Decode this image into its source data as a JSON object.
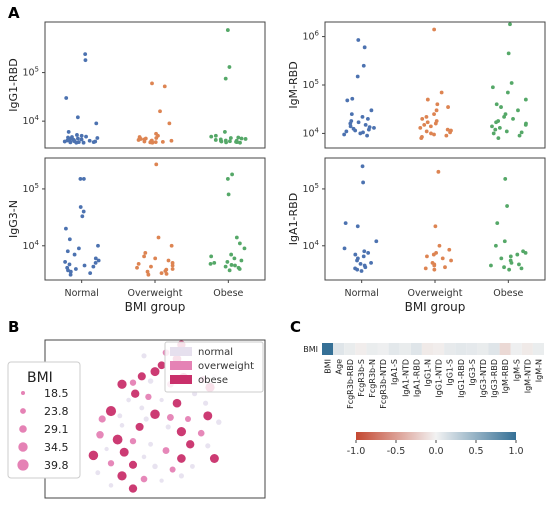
{
  "panel_labels": {
    "a": "A",
    "b": "B",
    "c": "C"
  },
  "colors": {
    "normal": "#4c72b0",
    "overweight": "#dd8452",
    "obese": "#55a868",
    "legend_normal": "#e6e0ee",
    "legend_overweight": "#e582b5",
    "legend_obese": "#c9306b"
  },
  "chart_data": [
    {
      "type": "scatter",
      "panel": "A",
      "subplot": "IgG1-RBD",
      "ylabel": "IgG1-RBD",
      "yscale": "log",
      "ylim": [
        2800,
        1100000
      ],
      "yticks": [
        {
          "v": 10000,
          "m": "10",
          "e": "4"
        },
        {
          "v": 100000,
          "m": "10",
          "e": "5"
        }
      ],
      "categories": [
        "Normal",
        "Overweight",
        "Obese"
      ],
      "show_xticks": false,
      "series": [
        {
          "category": "Normal",
          "values": [
            240000,
            180000,
            30000,
            12000,
            9000,
            6000,
            5200,
            5000,
            4800,
            4700,
            4600,
            4500,
            4400,
            4300,
            4200,
            4100,
            4000,
            3950,
            3900,
            3850,
            3800,
            3800,
            3750,
            3700,
            3700,
            3650,
            3600,
            3600
          ]
        },
        {
          "category": "Overweight",
          "values": [
            60000,
            52000,
            16000,
            9000,
            5500,
            5000,
            4700,
            4500,
            4400,
            4300,
            4200,
            4100,
            4000,
            3950,
            3900,
            3850,
            3800,
            3750,
            3700,
            3650,
            3600
          ]
        },
        {
          "category": "Obese",
          "values": [
            750000,
            130000,
            75000,
            6000,
            5000,
            4800,
            4600,
            4500,
            4400,
            4300,
            4200,
            4100,
            4000,
            3950,
            3900,
            3850,
            3800,
            3750,
            3700,
            3650,
            3600
          ]
        }
      ]
    },
    {
      "type": "scatter",
      "panel": "A",
      "subplot": "IgM-RBD",
      "ylabel": "IgM-RBD",
      "yscale": "log",
      "ylim": [
        5000,
        2000000
      ],
      "yticks": [
        {
          "v": 10000,
          "m": "10",
          "e": "4"
        },
        {
          "v": 100000,
          "m": "10",
          "e": "5"
        },
        {
          "v": 1000000,
          "m": "10",
          "e": "6"
        }
      ],
      "categories": [
        "Normal",
        "Overweight",
        "Obese"
      ],
      "show_xticks": false,
      "series": [
        {
          "category": "Normal",
          "values": [
            850000,
            600000,
            250000,
            150000,
            52000,
            48000,
            30000,
            25000,
            22000,
            20000,
            18000,
            17000,
            16000,
            15000,
            14000,
            13500,
            13000,
            12500,
            12000,
            11500,
            11000,
            10500,
            10000,
            9500,
            9000
          ]
        },
        {
          "category": "Overweight",
          "values": [
            1400000,
            70000,
            50000,
            40000,
            35000,
            30000,
            25000,
            22000,
            20000,
            18000,
            17000,
            16000,
            15000,
            14000,
            13000,
            12000,
            11500,
            11000,
            10500,
            10000,
            9500,
            9000,
            8500,
            8000
          ]
        },
        {
          "category": "Obese",
          "values": [
            1800000,
            450000,
            110000,
            90000,
            70000,
            50000,
            40000,
            35000,
            30000,
            25000,
            22000,
            20000,
            18000,
            17000,
            16000,
            15000,
            14000,
            13000,
            12000,
            11000,
            10500,
            10000,
            9000,
            8000
          ]
        }
      ]
    },
    {
      "type": "scatter",
      "panel": "A",
      "subplot": "IgG3-N",
      "ylabel": "IgG3-N",
      "yscale": "log",
      "ylim": [
        2500,
        350000
      ],
      "yticks": [
        {
          "v": 10000,
          "m": "10",
          "e": "4"
        },
        {
          "v": 100000,
          "m": "10",
          "e": "5"
        }
      ],
      "categories": [
        "Normal",
        "Overweight",
        "Obese"
      ],
      "xlabel": "BMI group",
      "show_xticks": true,
      "series": [
        {
          "category": "Normal",
          "values": [
            150000,
            150000,
            48000,
            40000,
            33000,
            20000,
            13000,
            10000,
            9000,
            8000,
            7000,
            6000,
            5500,
            5200,
            5000,
            4700,
            4500,
            4300,
            4100,
            3900,
            3700,
            3500,
            3300,
            3100
          ]
        },
        {
          "category": "Overweight",
          "values": [
            270000,
            14000,
            10000,
            7500,
            6500,
            6000,
            5500,
            5000,
            4800,
            4500,
            4300,
            4100,
            3900,
            3800,
            3600,
            3500,
            3300,
            3200,
            3100
          ]
        },
        {
          "category": "Obese",
          "values": [
            180000,
            150000,
            80000,
            14000,
            11000,
            9000,
            7000,
            6500,
            6000,
            5500,
            5200,
            5000,
            4800,
            4600,
            4500,
            4300,
            4100,
            3900,
            3700
          ]
        }
      ]
    },
    {
      "type": "scatter",
      "panel": "A",
      "subplot": "IgA1-RBD",
      "ylabel": "IgA1-RBD",
      "yscale": "log",
      "ylim": [
        2500,
        350000
      ],
      "yticks": [
        {
          "v": 10000,
          "m": "10",
          "e": "4"
        },
        {
          "v": 100000,
          "m": "10",
          "e": "5"
        }
      ],
      "categories": [
        "Normal",
        "Overweight",
        "Obese"
      ],
      "xlabel": "BMI group",
      "show_xticks": true,
      "series": [
        {
          "category": "Normal",
          "values": [
            250000,
            130000,
            25000,
            22000,
            12000,
            9000,
            8000,
            7500,
            7000,
            6500,
            6000,
            5500,
            5000,
            4800,
            4500,
            4200,
            4000,
            3800,
            3600
          ]
        },
        {
          "category": "Overweight",
          "values": [
            200000,
            22000,
            10000,
            8500,
            7500,
            7000,
            6500,
            6000,
            5500,
            5000,
            4700,
            4500,
            4200,
            4000,
            3800
          ]
        },
        {
          "category": "Obese",
          "values": [
            150000,
            50000,
            25000,
            12000,
            10000,
            8000,
            7500,
            7000,
            6500,
            6000,
            5500,
            5000,
            4700,
            4500,
            4200,
            4000,
            3800
          ]
        }
      ]
    },
    {
      "type": "scatter",
      "panel": "B",
      "subplot": "embedding",
      "legend": {
        "items": [
          "normal",
          "overweight",
          "obese"
        ],
        "position": "top-right"
      },
      "size_legend": {
        "title": "BMI",
        "values": [
          "18.5",
          "23.8",
          "29.1",
          "34.5",
          "39.8"
        ]
      },
      "points": [
        {
          "x": 0.62,
          "y": 0.97,
          "g": "obese",
          "bmi": 33
        },
        {
          "x": 0.55,
          "y": 0.92,
          "g": "overweight",
          "bmi": 27
        },
        {
          "x": 0.45,
          "y": 0.9,
          "g": "normal",
          "bmi": 22
        },
        {
          "x": 0.6,
          "y": 0.88,
          "g": "obese",
          "bmi": 34
        },
        {
          "x": 0.53,
          "y": 0.84,
          "g": "obese",
          "bmi": 31
        },
        {
          "x": 0.58,
          "y": 0.82,
          "g": "normal",
          "bmi": 21
        },
        {
          "x": 0.65,
          "y": 0.84,
          "g": "normal",
          "bmi": 20
        },
        {
          "x": 0.5,
          "y": 0.8,
          "g": "obese",
          "bmi": 35
        },
        {
          "x": 0.44,
          "y": 0.77,
          "g": "obese",
          "bmi": 32
        },
        {
          "x": 0.4,
          "y": 0.73,
          "g": "overweight",
          "bmi": 26
        },
        {
          "x": 0.48,
          "y": 0.74,
          "g": "normal",
          "bmi": 23
        },
        {
          "x": 0.35,
          "y": 0.72,
          "g": "obese",
          "bmi": 36
        },
        {
          "x": 0.57,
          "y": 0.72,
          "g": "overweight",
          "bmi": 27
        },
        {
          "x": 0.63,
          "y": 0.76,
          "g": "obese",
          "bmi": 38
        },
        {
          "x": 0.72,
          "y": 0.75,
          "g": "overweight",
          "bmi": 28
        },
        {
          "x": 0.77,
          "y": 0.77,
          "g": "normal",
          "bmi": 21
        },
        {
          "x": 0.75,
          "y": 0.7,
          "g": "obese",
          "bmi": 36
        },
        {
          "x": 0.68,
          "y": 0.66,
          "g": "normal",
          "bmi": 22
        },
        {
          "x": 0.41,
          "y": 0.66,
          "g": "obese",
          "bmi": 33
        },
        {
          "x": 0.47,
          "y": 0.64,
          "g": "overweight",
          "bmi": 26
        },
        {
          "x": 0.53,
          "y": 0.62,
          "g": "normal",
          "bmi": 19
        },
        {
          "x": 0.38,
          "y": 0.62,
          "g": "normal",
          "bmi": 20
        },
        {
          "x": 0.6,
          "y": 0.6,
          "g": "obese",
          "bmi": 34
        },
        {
          "x": 0.73,
          "y": 0.6,
          "g": "normal",
          "bmi": 22
        },
        {
          "x": 0.44,
          "y": 0.57,
          "g": "normal",
          "bmi": 21
        },
        {
          "x": 0.3,
          "y": 0.55,
          "g": "obese",
          "bmi": 39
        },
        {
          "x": 0.26,
          "y": 0.5,
          "g": "overweight",
          "bmi": 29
        },
        {
          "x": 0.5,
          "y": 0.53,
          "g": "obese",
          "bmi": 37
        },
        {
          "x": 0.57,
          "y": 0.51,
          "g": "overweight",
          "bmi": 28
        },
        {
          "x": 0.65,
          "y": 0.5,
          "g": "overweight",
          "bmi": 25
        },
        {
          "x": 0.74,
          "y": 0.52,
          "g": "obese",
          "bmi": 35
        },
        {
          "x": 0.79,
          "y": 0.48,
          "g": "normal",
          "bmi": 23
        },
        {
          "x": 0.35,
          "y": 0.46,
          "g": "normal",
          "bmi": 20
        },
        {
          "x": 0.43,
          "y": 0.45,
          "g": "obese",
          "bmi": 32
        },
        {
          "x": 0.56,
          "y": 0.45,
          "g": "normal",
          "bmi": 22
        },
        {
          "x": 0.62,
          "y": 0.42,
          "g": "obese",
          "bmi": 36
        },
        {
          "x": 0.71,
          "y": 0.41,
          "g": "overweight",
          "bmi": 27
        },
        {
          "x": 0.25,
          "y": 0.4,
          "g": "overweight",
          "bmi": 30
        },
        {
          "x": 0.33,
          "y": 0.37,
          "g": "obese",
          "bmi": 38
        },
        {
          "x": 0.4,
          "y": 0.36,
          "g": "overweight",
          "bmi": 26
        },
        {
          "x": 0.48,
          "y": 0.34,
          "g": "normal",
          "bmi": 21
        },
        {
          "x": 0.66,
          "y": 0.34,
          "g": "obese",
          "bmi": 33
        },
        {
          "x": 0.74,
          "y": 0.33,
          "g": "normal",
          "bmi": 22
        },
        {
          "x": 0.28,
          "y": 0.31,
          "g": "normal",
          "bmi": 19
        },
        {
          "x": 0.36,
          "y": 0.29,
          "g": "obese",
          "bmi": 35
        },
        {
          "x": 0.55,
          "y": 0.3,
          "g": "overweight",
          "bmi": 28
        },
        {
          "x": 0.22,
          "y": 0.27,
          "g": "obese",
          "bmi": 37
        },
        {
          "x": 0.45,
          "y": 0.26,
          "g": "normal",
          "bmi": 20
        },
        {
          "x": 0.62,
          "y": 0.25,
          "g": "obese",
          "bmi": 34
        },
        {
          "x": 0.3,
          "y": 0.22,
          "g": "overweight",
          "bmi": 26
        },
        {
          "x": 0.4,
          "y": 0.21,
          "g": "obese",
          "bmi": 32
        },
        {
          "x": 0.5,
          "y": 0.2,
          "g": "normal",
          "bmi": 23
        },
        {
          "x": 0.58,
          "y": 0.18,
          "g": "overweight",
          "bmi": 25
        },
        {
          "x": 0.24,
          "y": 0.16,
          "g": "normal",
          "bmi": 21
        },
        {
          "x": 0.35,
          "y": 0.14,
          "g": "obese",
          "bmi": 36
        },
        {
          "x": 0.45,
          "y": 0.12,
          "g": "overweight",
          "bmi": 27
        },
        {
          "x": 0.53,
          "y": 0.11,
          "g": "normal",
          "bmi": 19
        },
        {
          "x": 0.4,
          "y": 0.06,
          "g": "obese",
          "bmi": 33
        },
        {
          "x": 0.62,
          "y": 0.14,
          "g": "normal",
          "bmi": 22
        },
        {
          "x": 0.3,
          "y": 0.08,
          "g": "normal",
          "bmi": 20
        },
        {
          "x": 0.67,
          "y": 0.2,
          "g": "normal",
          "bmi": 21
        },
        {
          "x": 0.77,
          "y": 0.25,
          "g": "obese",
          "bmi": 35
        },
        {
          "x": 0.46,
          "y": 0.5,
          "g": "normal",
          "bmi": 22
        },
        {
          "x": 0.34,
          "y": 0.52,
          "g": "normal",
          "bmi": 21
        }
      ]
    },
    {
      "type": "heatmap",
      "panel": "C",
      "row": "BMI",
      "columns": [
        "BMI",
        "Age",
        "FcgR3b-RBD",
        "FcgR3b-S",
        "FcgR3b-N",
        "FcgR3b-NTD",
        "IgA1-S",
        "IgA1-NTD",
        "IgA1-RBD",
        "IgG1-N",
        "IgG1-NTD",
        "IgG1-S",
        "IgG1-RBD",
        "IgG3-S",
        "IgG3-NTD",
        "IgG3-RBD",
        "IgM-RBD",
        "IgM-S",
        "IgM-NTD",
        "IgM-N"
      ],
      "values": [
        1.0,
        0.1,
        0.05,
        -0.03,
        0.04,
        0.02,
        0.08,
        0.05,
        0.1,
        -0.05,
        -0.03,
        0.06,
        0.08,
        0.07,
        0.05,
        0.1,
        -0.15,
        0.02,
        -0.05,
        0.04
      ],
      "colorbar": {
        "min": -1.0,
        "max": 1.0,
        "ticks": [
          "-1.0",
          "-0.5",
          "0.0",
          "0.5",
          "1.0"
        ]
      }
    }
  ]
}
